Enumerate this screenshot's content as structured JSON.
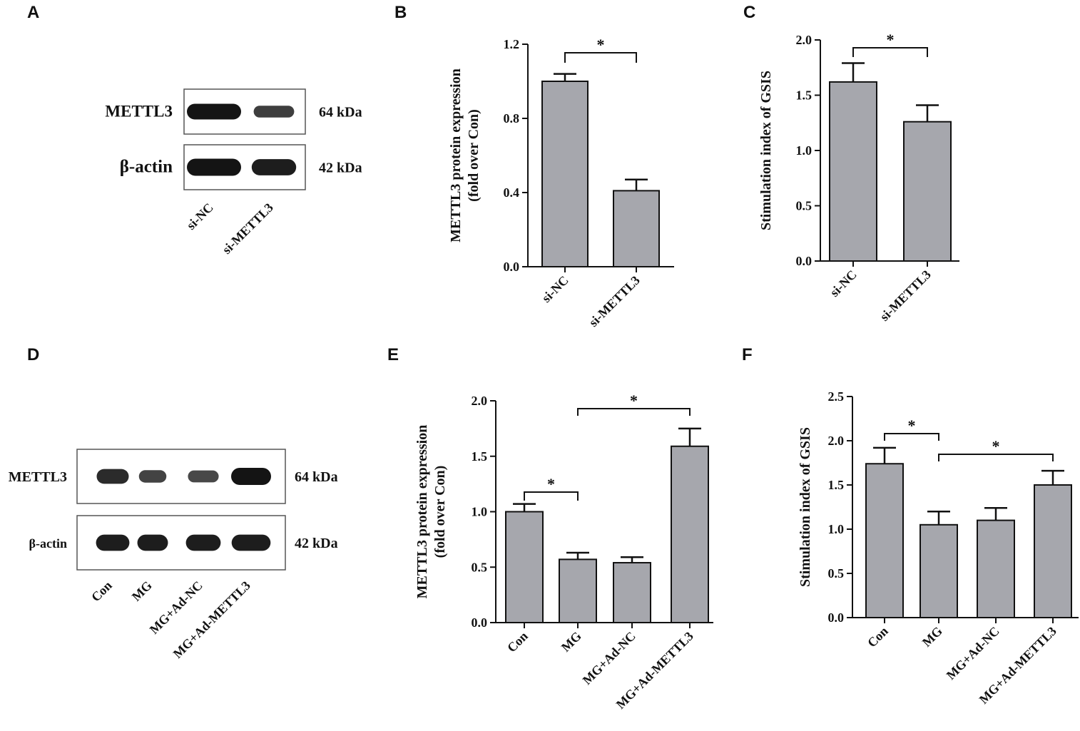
{
  "panels": {
    "A": {
      "letter": "A",
      "rows": [
        {
          "protein": "METTL3",
          "size": "64 kDa"
        },
        {
          "protein": "β-actin",
          "size": "42 kDa"
        }
      ],
      "lanes": [
        "si-NC",
        "si-METTL3"
      ],
      "band_intensity": [
        [
          1.0,
          0.55
        ],
        [
          1.0,
          0.9
        ]
      ]
    },
    "D": {
      "letter": "D",
      "rows": [
        {
          "protein": "METTL3",
          "size": "64 kDa"
        },
        {
          "protein": "β-actin",
          "size": "42 kDa"
        }
      ],
      "lanes": [
        "Con",
        "MG",
        "MG+Ad-NC",
        "MG+Ad-METTL3"
      ],
      "band_intensity": [
        [
          0.75,
          0.5,
          0.45,
          1.0
        ],
        [
          0.9,
          0.9,
          0.9,
          0.9
        ]
      ]
    }
  },
  "chart_data": [
    {
      "panel": "B",
      "type": "bar",
      "ylabel": [
        "METTL3 protein expression",
        "(fold over Con)"
      ],
      "categories": [
        "si-NC",
        "si-METTL3"
      ],
      "values": [
        1.0,
        0.41
      ],
      "errors": [
        0.04,
        0.06
      ],
      "ylim": [
        0,
        1.2
      ],
      "yticks": [
        "0.0",
        "0.4",
        "0.8",
        "1.2"
      ],
      "significance": [
        {
          "from": 0,
          "to": 1,
          "label": "*"
        }
      ],
      "colors": {
        "bar": "#a6a7ad"
      }
    },
    {
      "panel": "C",
      "type": "bar",
      "ylabel": [
        "Stimulation index of GSIS"
      ],
      "categories": [
        "si-NC",
        "si-METTL3"
      ],
      "values": [
        1.62,
        1.26
      ],
      "errors": [
        0.17,
        0.15
      ],
      "ylim": [
        0,
        2.0
      ],
      "yticks": [
        "0.0",
        "0.5",
        "1.0",
        "1.5",
        "2.0"
      ],
      "significance": [
        {
          "from": 0,
          "to": 1,
          "label": "*"
        }
      ],
      "colors": {
        "bar": "#a6a7ad"
      }
    },
    {
      "panel": "E",
      "type": "bar",
      "ylabel": [
        "METTL3 protein expression",
        "(fold over Con)"
      ],
      "categories": [
        "Con",
        "MG",
        "MG+Ad-NC",
        "MG+Ad-METTL3"
      ],
      "values": [
        1.0,
        0.57,
        0.54,
        1.59
      ],
      "errors": [
        0.07,
        0.06,
        0.05,
        0.16
      ],
      "ylim": [
        0,
        2.0
      ],
      "yticks": [
        "0.0",
        "0.5",
        "1.0",
        "1.5",
        "2.0"
      ],
      "significance": [
        {
          "from": 0,
          "to": 1,
          "label": "*"
        },
        {
          "from": 1,
          "to": 3,
          "label": "*"
        }
      ],
      "colors": {
        "bar": "#a6a7ad"
      }
    },
    {
      "panel": "F",
      "type": "bar",
      "ylabel": [
        "Stimulation index of GSIS"
      ],
      "categories": [
        "Con",
        "MG",
        "MG+Ad-NC",
        "MG+Ad-METTL3"
      ],
      "values": [
        1.74,
        1.05,
        1.1,
        1.5
      ],
      "errors": [
        0.18,
        0.15,
        0.14,
        0.16
      ],
      "ylim": [
        0,
        2.5
      ],
      "yticks": [
        "0.0",
        "0.5",
        "1.0",
        "1.5",
        "2.0",
        "2.5"
      ],
      "significance": [
        {
          "from": 0,
          "to": 1,
          "label": "*"
        },
        {
          "from": 1,
          "to": 3,
          "label": "*"
        }
      ],
      "colors": {
        "bar": "#a6a7ad"
      }
    }
  ]
}
